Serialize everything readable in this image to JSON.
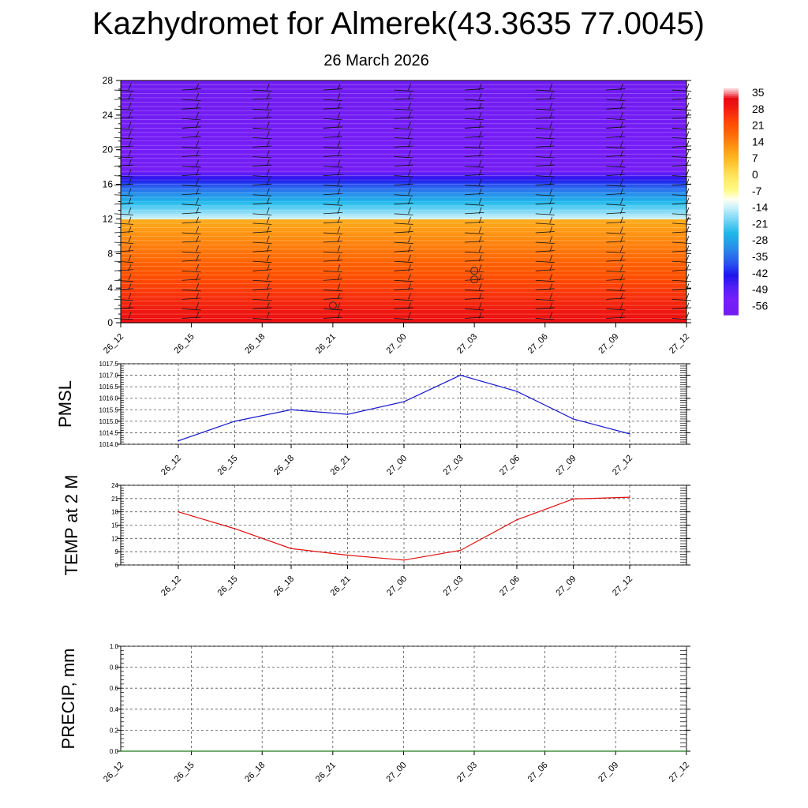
{
  "title": "Kazhydromet for Almerek(43.3635 77.0045)",
  "subtitle": "26 March 2026",
  "time_labels": [
    "26_12",
    "26_15",
    "26_18",
    "26_21",
    "27_00",
    "27_03",
    "27_06",
    "27_09",
    "27_12"
  ],
  "colors": {
    "pmsl_line": "#1a1acc",
    "temp_line": "#e01010",
    "precip_line": "#1a7a1a",
    "grid": "#555555",
    "axis": "#000000"
  },
  "chart_data": [
    {
      "id": "cross-section",
      "type": "heatmap",
      "title": "",
      "ylabel": "",
      "ylim": [
        0,
        28
      ],
      "yticks": [
        0,
        4,
        8,
        12,
        16,
        20,
        24,
        28
      ],
      "x": [
        "26_12",
        "26_15",
        "26_18",
        "26_21",
        "27_00",
        "27_03",
        "27_06",
        "27_09",
        "27_12"
      ],
      "colorbar": {
        "labels": [
          "35",
          "28",
          "21",
          "14",
          "7",
          "0",
          "-7",
          "-14",
          "-21",
          "-28",
          "-35",
          "-42",
          "-49",
          "-56"
        ],
        "min": -63,
        "max": 38
      },
      "temperature_by_level": [
        [
          0,
          33
        ],
        [
          1,
          31
        ],
        [
          2,
          29
        ],
        [
          3,
          27
        ],
        [
          4,
          25
        ],
        [
          5,
          23
        ],
        [
          6,
          21
        ],
        [
          7,
          19
        ],
        [
          8,
          17
        ],
        [
          9,
          15
        ],
        [
          10,
          13
        ],
        [
          11,
          11
        ],
        [
          11.9,
          9
        ],
        [
          12.0,
          -14
        ],
        [
          12.5,
          -17
        ],
        [
          13,
          -20
        ],
        [
          14,
          -26
        ],
        [
          15,
          -33
        ],
        [
          16,
          -40
        ],
        [
          17,
          -49
        ],
        [
          17.6,
          -56
        ],
        [
          18.4,
          -61
        ],
        [
          19,
          -59
        ],
        [
          20,
          -58
        ],
        [
          22,
          -59
        ],
        [
          24,
          -60
        ],
        [
          25,
          -61
        ],
        [
          26,
          -62
        ],
        [
          28,
          -62
        ]
      ],
      "markers": [
        {
          "x": "26_21",
          "level": 2
        },
        {
          "x": "27_03",
          "level": 5
        },
        {
          "x": "27_03",
          "level": 6
        }
      ]
    },
    {
      "id": "pmsl",
      "type": "line",
      "ylabel": "PMSL",
      "ylim": [
        1014.0,
        1017.5
      ],
      "yticks": [
        "1014.0",
        "1014.5",
        "1015.0",
        "1015.5",
        "1016.0",
        "1016.5",
        "1017.0",
        "1017.5"
      ],
      "x": [
        "26_12",
        "26_15",
        "26_18",
        "26_21",
        "27_00",
        "27_03",
        "27_06",
        "27_09",
        "27_12"
      ],
      "values": [
        1014.15,
        1015.0,
        1015.5,
        1015.3,
        1015.85,
        1017.0,
        1016.3,
        1015.1,
        1014.45
      ]
    },
    {
      "id": "temp2m",
      "type": "line",
      "ylabel": "TEMP at 2 M",
      "ylim": [
        6,
        24
      ],
      "yticks": [
        "6",
        "9",
        "12",
        "15",
        "18",
        "21",
        "24"
      ],
      "x": [
        "26_12",
        "26_15",
        "26_18",
        "26_21",
        "27_00",
        "27_03",
        "27_06",
        "27_09",
        "27_12"
      ],
      "values": [
        18.0,
        14.2,
        9.7,
        8.2,
        7.1,
        9.3,
        16.2,
        20.9,
        21.3
      ]
    },
    {
      "id": "precip",
      "type": "line",
      "ylabel": "PRECIP, mm",
      "ylim": [
        0.0,
        1.0
      ],
      "yticks": [
        "0.0",
        "0.2",
        "0.4",
        "0.6",
        "0.8",
        "1.0"
      ],
      "x": [
        "26_12",
        "26_15",
        "26_18",
        "26_21",
        "27_00",
        "27_03",
        "27_06",
        "27_09",
        "27_12"
      ],
      "values": [
        0,
        0,
        0,
        0,
        0,
        0,
        0,
        0,
        0
      ]
    }
  ]
}
